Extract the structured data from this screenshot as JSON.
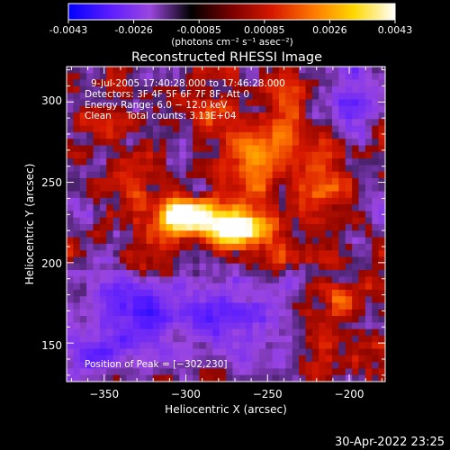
{
  "colorbar": {
    "tick_labels": [
      "-0.0043",
      "-0.0026",
      "-0.00085",
      "0.00085",
      "0.0026",
      "0.0043"
    ],
    "unit_label": "(photons cm⁻² s⁻¹ asec⁻²)",
    "min": -0.0043,
    "max": 0.0043,
    "stops": [
      "#0000ff",
      "#5a1cff",
      "#9b46e0",
      "#000000",
      "#7a0000",
      "#d81800",
      "#ff7800",
      "#ffd800",
      "#ffffff"
    ]
  },
  "chart_data": {
    "type": "heatmap",
    "title": "Reconstructed RHESSI Image",
    "xlabel": "Heliocentric X (arcsec)",
    "ylabel": "Heliocentric Y (arcsec)",
    "xlim": [
      -373,
      -178
    ],
    "ylim": [
      126,
      322
    ],
    "x_ticks": [
      -350,
      -300,
      -250,
      -200
    ],
    "y_ticks": [
      150,
      200,
      250,
      300
    ],
    "x_tick_labels": [
      "−350",
      "−300",
      "−250",
      "−200"
    ],
    "y_tick_labels": [
      "150",
      "200",
      "250",
      "300"
    ],
    "annotations": [
      "9-Jul-2005 17:40:28.000 to 17:46:28.000",
      "Detectors: 3F 4F 5F 6F 7F 8F, Att 0",
      "Energy Range: 6.0 − 12.0 keV",
      "Clean     Total counts: 3.13E+04"
    ],
    "peak_label": "Position of Peak = [−302,230]",
    "peak_position": [
      -302,
      230
    ]
  },
  "footer": {
    "timestamp": "30-Apr-2022 23:25"
  }
}
